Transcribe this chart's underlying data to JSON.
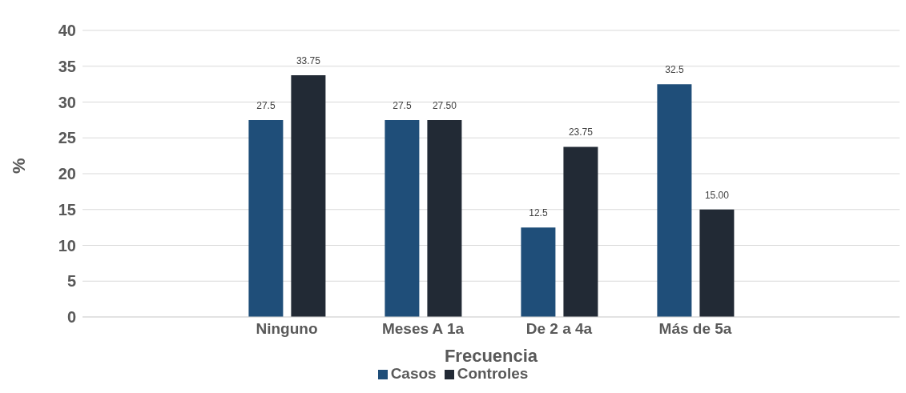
{
  "chart_data": {
    "type": "bar",
    "xlabel": "Frecuencia",
    "ylabel": "%",
    "categories": [
      null,
      "Ninguno",
      "Meses A 1a",
      "De 2 a 4a",
      "Más de 5a",
      null
    ],
    "series": [
      {
        "name": "Casos",
        "color": "#1f4e79",
        "values": [
          null,
          27.5,
          27.5,
          12.5,
          32.5,
          null
        ],
        "value_labels": [
          null,
          "27.5",
          "27.5",
          "12.5",
          "32.5",
          null
        ]
      },
      {
        "name": "Controles",
        "color": "#222a35",
        "values": [
          null,
          33.75,
          27.5,
          23.75,
          15,
          null
        ],
        "value_labels": [
          null,
          "33.75",
          "27.50",
          "23.75",
          "15.00",
          null
        ]
      }
    ],
    "ylim": [
      0,
      40
    ],
    "yticks": [
      0,
      5,
      10,
      15,
      20,
      25,
      30,
      35,
      40
    ],
    "grid": "y",
    "legend": "bottom"
  }
}
